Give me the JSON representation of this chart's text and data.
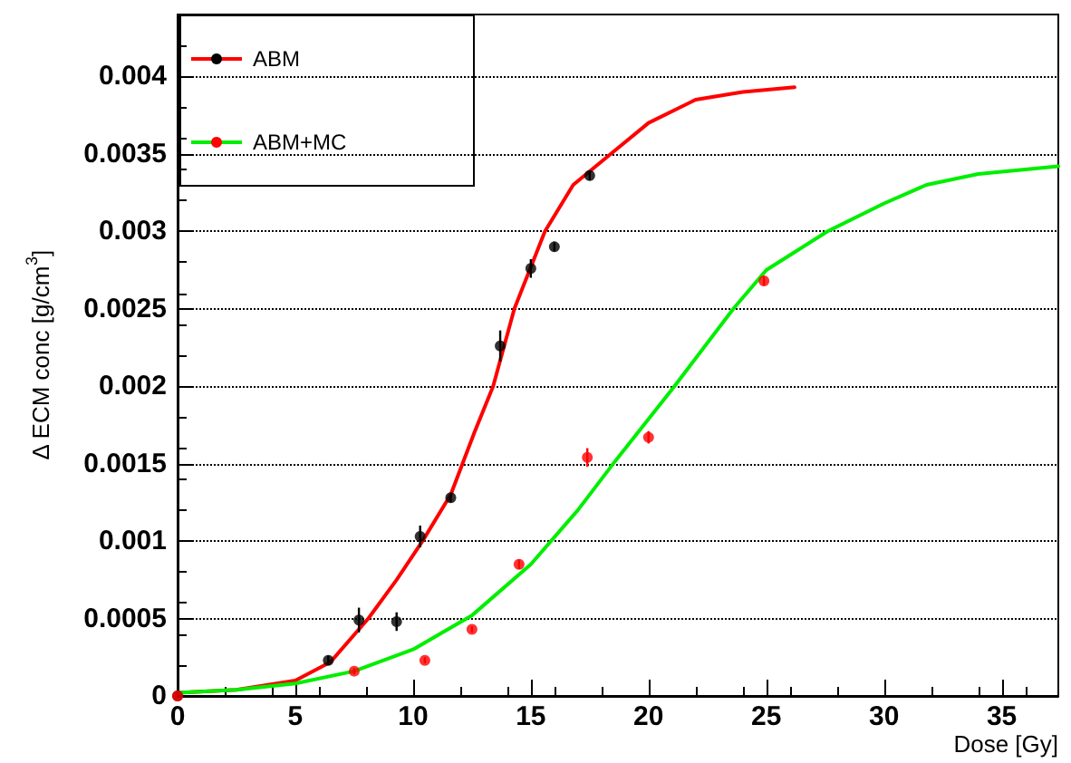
{
  "chart_data": {
    "type": "scatter",
    "xlabel": "Dose [Gy]",
    "ylabel": "Δ ECM conc [g/cm$^{3}$]",
    "xlim": [
      0,
      37.4
    ],
    "xticks": [
      0,
      5,
      10,
      15,
      20,
      25,
      30,
      35
    ],
    "ylim": [
      0,
      0.0044
    ],
    "yticks": [
      0,
      0.0005,
      0.001,
      0.0015,
      0.002,
      0.0025,
      0.003,
      0.0035,
      0.004
    ],
    "grid": "y",
    "legend": "top left",
    "series": [
      {
        "name": "ABM",
        "marker": "circle",
        "color": "#000000",
        "x": [
          0,
          6.4,
          7.7,
          9.3,
          10.3,
          11.6,
          13.7,
          15.0,
          16.0,
          17.5
        ],
        "values": [
          0,
          0.00023,
          0.00049,
          0.00048,
          0.00103,
          0.00128,
          0.00226,
          0.00276,
          0.0029,
          0.00336
        ],
        "errors": [
          null,
          3e-05,
          8e-05,
          6e-05,
          7e-05,
          3e-05,
          0.0001,
          6e-05,
          3e-05,
          3e-05
        ]
      },
      {
        "type": "line",
        "marker": "none",
        "color": "#ff0000",
        "x": [
          0,
          2.5,
          5,
          6.5,
          8.1,
          9.3,
          10.4,
          11.6,
          12.6,
          13.4,
          14.3,
          15.6,
          16.8,
          18.4,
          20,
          22,
          24,
          26.2
        ],
        "values": [
          2e-05,
          4e-05,
          0.0001,
          0.00022,
          0.0005,
          0.00075,
          0.001,
          0.0013,
          0.0017,
          0.002,
          0.0025,
          0.003,
          0.0033,
          0.0035,
          0.0037,
          0.00385,
          0.0039,
          0.00393
        ]
      },
      {
        "name": "ABM+MC",
        "marker": "circle",
        "color": "#ff0000",
        "x": [
          0,
          7.5,
          10.5,
          12.5,
          14.5,
          17.4,
          20.0,
          24.9
        ],
        "values": [
          0,
          0.00016,
          0.00023,
          0.00043,
          0.00085,
          0.00154,
          0.00167,
          0.00268
        ],
        "errors": [
          null,
          2e-05,
          2e-05,
          2e-05,
          3e-05,
          6e-05,
          4e-05,
          3e-05
        ]
      },
      {
        "type": "line",
        "marker": "none",
        "color": "#00ee00",
        "x": [
          0,
          2.5,
          5,
          7.5,
          10,
          12.5,
          15,
          17,
          18.5,
          21.1,
          23.6,
          25,
          27.6,
          30,
          31.8,
          34,
          37.4
        ],
        "values": [
          2e-05,
          4e-05,
          8e-05,
          0.00016,
          0.0003,
          0.00052,
          0.00085,
          0.0012,
          0.0015,
          0.002,
          0.0025,
          0.00275,
          0.003,
          0.00318,
          0.0033,
          0.00337,
          0.00342
        ]
      }
    ]
  }
}
